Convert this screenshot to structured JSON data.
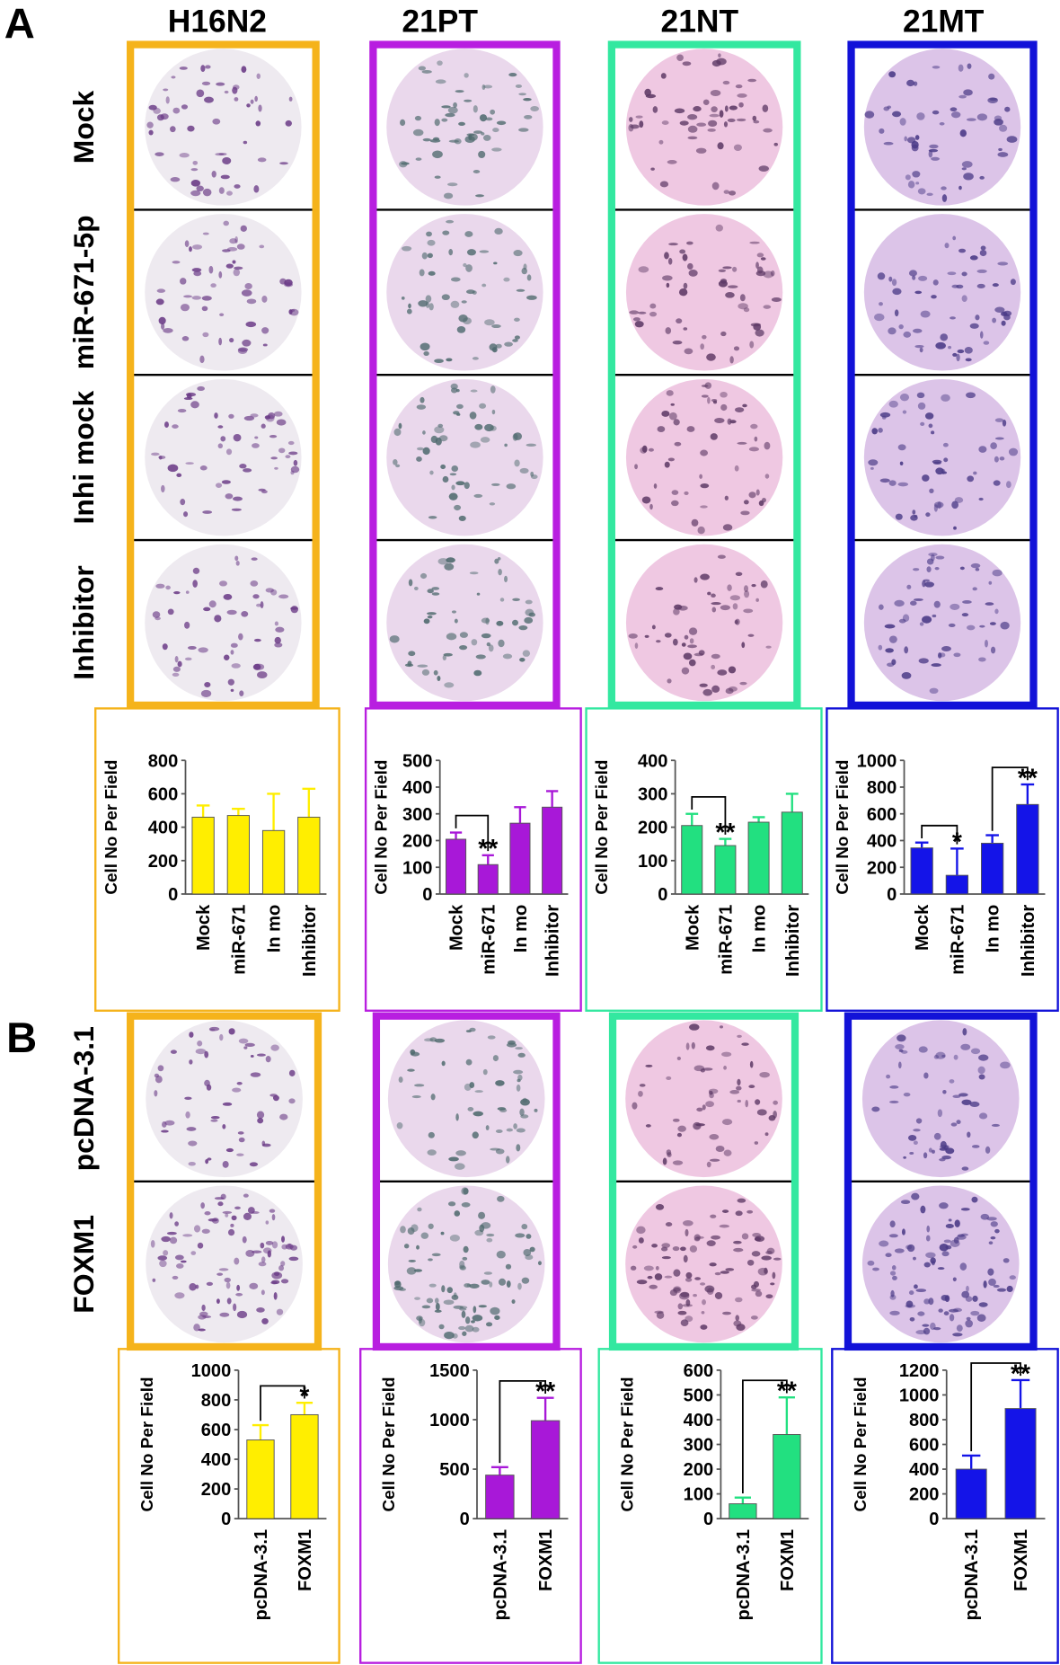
{
  "panels": [
    {
      "label": "A",
      "columns": [
        "H16N2",
        "21PT",
        "21NT",
        "21MT"
      ],
      "rows": [
        "Mock",
        "miR-671-5p",
        "Inhi mock",
        "Inhibitor"
      ]
    },
    {
      "label": "B",
      "rows": [
        "pcDNA-3.1",
        "FOXM1"
      ]
    }
  ],
  "chart_data": [
    {
      "type": "bar",
      "y_label": "Cell No Per Field",
      "border_color": "#f5b31b",
      "categories": [
        "Mock",
        "miR-671",
        "In mo",
        "Inhibitor"
      ],
      "series": [
        {
          "color": "#ffee00",
          "values": [
            460,
            470,
            380,
            460
          ],
          "errors": [
            70,
            40,
            220,
            170
          ]
        }
      ],
      "ylim": [
        0,
        800
      ],
      "yticks": [
        0,
        200,
        400,
        600,
        800
      ],
      "annotations": []
    },
    {
      "type": "bar",
      "y_label": "Cell No Per Field",
      "border_color": "#b81ee0",
      "categories": [
        "Mock",
        "miR-671",
        "In mo",
        "Inhibitor"
      ],
      "series": [
        {
          "color": "#a818d8",
          "values": [
            205,
            110,
            265,
            325
          ],
          "errors": [
            25,
            35,
            60,
            60
          ]
        }
      ],
      "ylim": [
        0,
        500
      ],
      "yticks": [
        0,
        100,
        200,
        300,
        400,
        500
      ],
      "annotations": [
        {
          "text": "**",
          "span": [
            0,
            1
          ]
        }
      ]
    },
    {
      "type": "bar",
      "y_label": "Cell No Per Field",
      "border_color": "#33e8a0",
      "categories": [
        "Mock",
        "miR-671",
        "In mo",
        "Inhibitor"
      ],
      "series": [
        {
          "color": "#22e080",
          "values": [
            205,
            145,
            215,
            245
          ],
          "errors": [
            35,
            20,
            15,
            55
          ]
        }
      ],
      "ylim": [
        0,
        400
      ],
      "yticks": [
        0,
        100,
        200,
        300,
        400
      ],
      "annotations": [
        {
          "text": "**",
          "span": [
            0,
            1
          ]
        }
      ]
    },
    {
      "type": "bar",
      "y_label": "Cell No Per Field",
      "border_color": "#1212d8",
      "categories": [
        "Mock",
        "miR-671",
        "In mo",
        "Inhibitor"
      ],
      "series": [
        {
          "color": "#1414e8",
          "values": [
            345,
            140,
            380,
            670
          ],
          "errors": [
            40,
            200,
            60,
            150
          ]
        }
      ],
      "ylim": [
        0,
        1000
      ],
      "yticks": [
        0,
        200,
        400,
        600,
        800,
        1000
      ],
      "annotations": [
        {
          "text": "*",
          "span": [
            0,
            1
          ]
        },
        {
          "text": "**",
          "span": [
            2,
            3
          ]
        }
      ]
    },
    {
      "type": "bar",
      "y_label": "Cell No Per Field",
      "border_color": "#f5b31b",
      "categories": [
        "pcDNA-3.1",
        "FOXM1"
      ],
      "series": [
        {
          "color": "#ffee00",
          "values": [
            530,
            700
          ],
          "errors": [
            100,
            80
          ]
        }
      ],
      "ylim": [
        0,
        1000
      ],
      "yticks": [
        0,
        200,
        400,
        600,
        800,
        1000
      ],
      "annotations": [
        {
          "text": "*",
          "span": [
            0,
            1
          ]
        }
      ]
    },
    {
      "type": "bar",
      "y_label": "Cell No Per Field",
      "border_color": "#b81ee0",
      "categories": [
        "pcDNA-3.1",
        "FOXM1"
      ],
      "series": [
        {
          "color": "#a818d8",
          "values": [
            440,
            990
          ],
          "errors": [
            80,
            230
          ]
        }
      ],
      "ylim": [
        0,
        1500
      ],
      "yticks": [
        0,
        500,
        1000,
        1500
      ],
      "annotations": [
        {
          "text": "**",
          "span": [
            0,
            1
          ]
        }
      ]
    },
    {
      "type": "bar",
      "y_label": "Cell No Per Field",
      "border_color": "#33e8a0",
      "categories": [
        "pcDNA-3.1",
        "FOXM1"
      ],
      "series": [
        {
          "color": "#22e080",
          "values": [
            60,
            340
          ],
          "errors": [
            25,
            150
          ]
        }
      ],
      "ylim": [
        0,
        600
      ],
      "yticks": [
        0,
        100,
        200,
        300,
        400,
        500,
        600
      ],
      "annotations": [
        {
          "text": "**",
          "span": [
            0,
            1
          ]
        }
      ]
    },
    {
      "type": "bar",
      "y_label": "Cell No Per Field",
      "border_color": "#1212d8",
      "categories": [
        "pcDNA-3.1",
        "FOXM1"
      ],
      "series": [
        {
          "color": "#1414e8",
          "values": [
            400,
            890
          ],
          "errors": [
            110,
            230
          ]
        }
      ],
      "ylim": [
        0,
        1200
      ],
      "yticks": [
        0,
        200,
        400,
        600,
        800,
        1000,
        1200
      ],
      "annotations": [
        {
          "text": "**",
          "span": [
            0,
            1
          ]
        }
      ]
    }
  ]
}
